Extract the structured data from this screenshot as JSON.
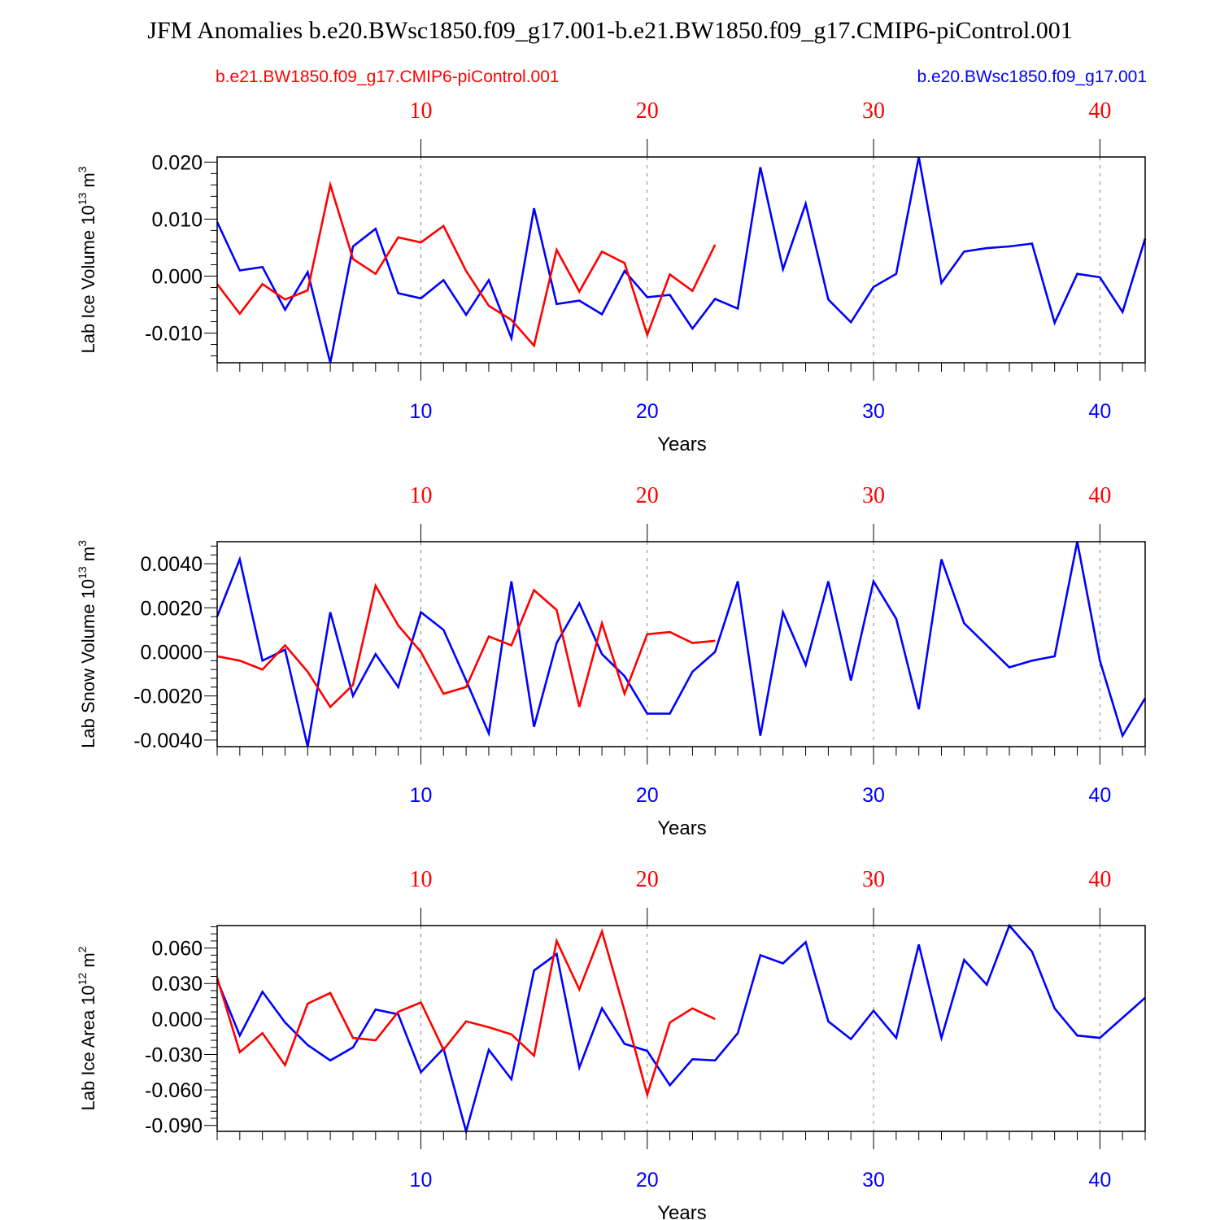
{
  "title": "JFM Anomalies b.e20.BWsc1850.f09_g17.001-b.e21.BW1850.f09_g17.CMIP6-piControl.001",
  "legend": {
    "red_label": "b.e21.BW1850.f09_g17.CMIP6-piControl.001",
    "blue_label": "b.e20.BWsc1850.f09_g17.001"
  },
  "colors": {
    "red": "#ff0000",
    "blue": "#0000ff",
    "axis": "#000000",
    "grid": "#888888"
  },
  "chart_data": [
    {
      "type": "line",
      "ylabel": "Lab Ice Volume 10^13 m^3",
      "ylabel_parts": [
        "Lab Ice Volume 10",
        "13",
        " m",
        "3"
      ],
      "xlabel": "Years",
      "xlim": [
        1,
        42
      ],
      "ylim": [
        -0.0152,
        0.0209
      ],
      "yticks": [
        -0.01,
        0.0,
        0.01,
        0.02
      ],
      "ytick_labels": [
        "-0.010",
        "0.000",
        "0.010",
        "0.020"
      ],
      "xticks": [
        10,
        20,
        30,
        40
      ],
      "xtick_labels": [
        "10",
        "20",
        "30",
        "40"
      ],
      "series": [
        {
          "name": "b.e20.BWsc1850.f09_g17.001",
          "color": "blue",
          "x_start": 1,
          "values": [
            0.0095,
            0.001,
            0.0016,
            -0.0059,
            0.0007,
            -0.0152,
            0.0052,
            0.0083,
            -0.003,
            -0.0039,
            -0.0007,
            -0.0068,
            -0.0007,
            -0.0109,
            0.0119,
            -0.0049,
            -0.0043,
            -0.0067,
            0.0009,
            -0.0037,
            -0.0033,
            -0.0092,
            -0.004,
            -0.0057,
            0.0191,
            0.0012,
            0.0127,
            -0.0041,
            -0.0081,
            -0.0019,
            0.0004,
            0.0209,
            -0.0012,
            0.0043,
            0.0049,
            0.0052,
            0.0057,
            -0.0082,
            0.0004,
            -0.0002,
            -0.0063,
            0.0066
          ]
        },
        {
          "name": "b.e21.BW1850.f09_g17.CMIP6-piControl.001",
          "color": "red",
          "x_start": 1,
          "values": [
            -0.0014,
            -0.0066,
            -0.0014,
            -0.0041,
            -0.0025,
            0.016,
            0.003,
            0.0004,
            0.0068,
            0.0059,
            0.0088,
            0.0009,
            -0.0052,
            -0.0077,
            -0.0122,
            0.0046,
            -0.0027,
            0.0043,
            0.0023,
            -0.0103,
            0.0003,
            -0.0026,
            0.0055
          ]
        }
      ]
    },
    {
      "type": "line",
      "ylabel": "Lab Snow Volume 10^13 m^3",
      "ylabel_parts": [
        "Lab Snow Volume 10",
        "13",
        " m",
        "3"
      ],
      "xlabel": "Years",
      "xlim": [
        1,
        42
      ],
      "ylim": [
        -0.0043,
        0.005
      ],
      "yticks": [
        -0.004,
        -0.002,
        0.0,
        0.002,
        0.004
      ],
      "ytick_labels": [
        "-0.0040",
        "-0.0020",
        "0.0000",
        "0.0020",
        "0.0040"
      ],
      "xticks": [
        10,
        20,
        30,
        40
      ],
      "xtick_labels": [
        "10",
        "20",
        "30",
        "40"
      ],
      "series": [
        {
          "name": "b.e20.BWsc1850.f09_g17.001",
          "color": "blue",
          "x_start": 1,
          "values": [
            0.0016,
            0.0042,
            -0.0004,
            0.0001,
            -0.0043,
            0.0018,
            -0.002,
            -0.0001,
            -0.0016,
            0.0018,
            0.001,
            -0.0013,
            -0.0037,
            0.0032,
            -0.0034,
            0.0004,
            0.0022,
            -0.0001,
            -0.0011,
            -0.0028,
            -0.0028,
            -0.0009,
            0.0,
            0.0032,
            -0.0038,
            0.0018,
            -0.0006,
            0.0032,
            -0.0013,
            0.0032,
            0.0015,
            -0.0026,
            0.0042,
            0.0013,
            0.0003,
            -0.0007,
            -0.0004,
            -0.0002,
            0.005,
            -0.0004,
            -0.0038,
            -0.0021
          ]
        },
        {
          "name": "b.e21.BW1850.f09_g17.CMIP6-piControl.001",
          "color": "red",
          "x_start": 1,
          "values": [
            -0.0002,
            -0.0004,
            -0.0008,
            0.0003,
            -0.0009,
            -0.0025,
            -0.0015,
            0.003,
            0.0012,
            0.0,
            -0.0019,
            -0.0016,
            0.0007,
            0.0003,
            0.0028,
            0.0019,
            -0.0025,
            0.0013,
            -0.0019,
            0.0008,
            0.0009,
            0.0004,
            0.0005
          ]
        }
      ]
    },
    {
      "type": "line",
      "ylabel": "Lab Ice Area 10^12 m^2",
      "ylabel_parts": [
        "Lab Ice Area 10",
        "12",
        " m",
        "2"
      ],
      "xlabel": "Years",
      "xlim": [
        1,
        42
      ],
      "ylim": [
        -0.095,
        0.079
      ],
      "yticks": [
        -0.09,
        -0.06,
        -0.03,
        0.0,
        0.03,
        0.06
      ],
      "ytick_labels": [
        "-0.090",
        "-0.060",
        "-0.030",
        "0.000",
        "0.030",
        "0.060"
      ],
      "xticks": [
        10,
        20,
        30,
        40
      ],
      "xtick_labels": [
        "10",
        "20",
        "30",
        "40"
      ],
      "series": [
        {
          "name": "b.e20.BWsc1850.f09_g17.001",
          "color": "blue",
          "x_start": 1,
          "values": [
            0.033,
            -0.014,
            0.023,
            -0.003,
            -0.022,
            -0.035,
            -0.024,
            0.008,
            0.004,
            -0.045,
            -0.025,
            -0.095,
            -0.026,
            -0.051,
            0.041,
            0.055,
            -0.041,
            0.009,
            -0.021,
            -0.027,
            -0.056,
            -0.034,
            -0.035,
            -0.012,
            0.054,
            0.047,
            0.065,
            -0.002,
            -0.017,
            0.007,
            -0.016,
            0.063,
            -0.016,
            0.05,
            0.029,
            0.079,
            0.057,
            0.009,
            -0.014,
            -0.016,
            0.001,
            0.018
          ]
        },
        {
          "name": "b.e21.BW1850.f09_g17.CMIP6-piControl.001",
          "color": "red",
          "x_start": 1,
          "values": [
            0.035,
            -0.028,
            -0.012,
            -0.039,
            0.013,
            0.022,
            -0.016,
            -0.018,
            0.006,
            0.014,
            -0.026,
            -0.002,
            -0.007,
            -0.013,
            -0.031,
            0.066,
            0.025,
            0.074,
            0.007,
            -0.064,
            -0.003,
            0.009,
            0.0
          ]
        }
      ]
    }
  ]
}
